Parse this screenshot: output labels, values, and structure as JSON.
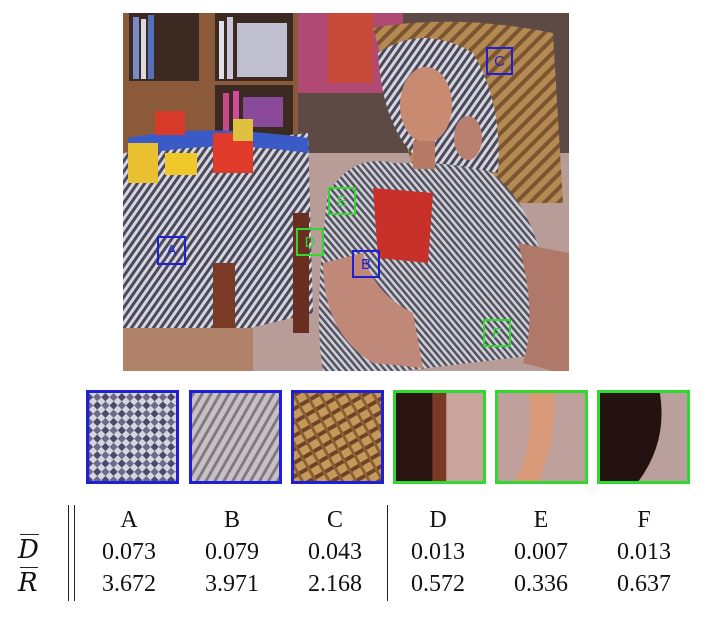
{
  "markers": [
    {
      "label": "A",
      "color": "#1f1fd6"
    },
    {
      "label": "B",
      "color": "#1f1fd6"
    },
    {
      "label": "C",
      "color": "#1f1fd6"
    },
    {
      "label": "D",
      "color": "#30d830"
    },
    {
      "label": "E",
      "color": "#30d830"
    },
    {
      "label": "F",
      "color": "#30d830"
    }
  ],
  "table": {
    "row_symbols": [
      "D",
      "R"
    ],
    "columns": [
      "A",
      "B",
      "C",
      "D",
      "E",
      "F"
    ],
    "row_D": [
      "0.073",
      "0.079",
      "0.043",
      "0.013",
      "0.007",
      "0.013"
    ],
    "row_R": [
      "3.672",
      "3.971",
      "2.168",
      "0.572",
      "0.336",
      "0.637"
    ]
  }
}
